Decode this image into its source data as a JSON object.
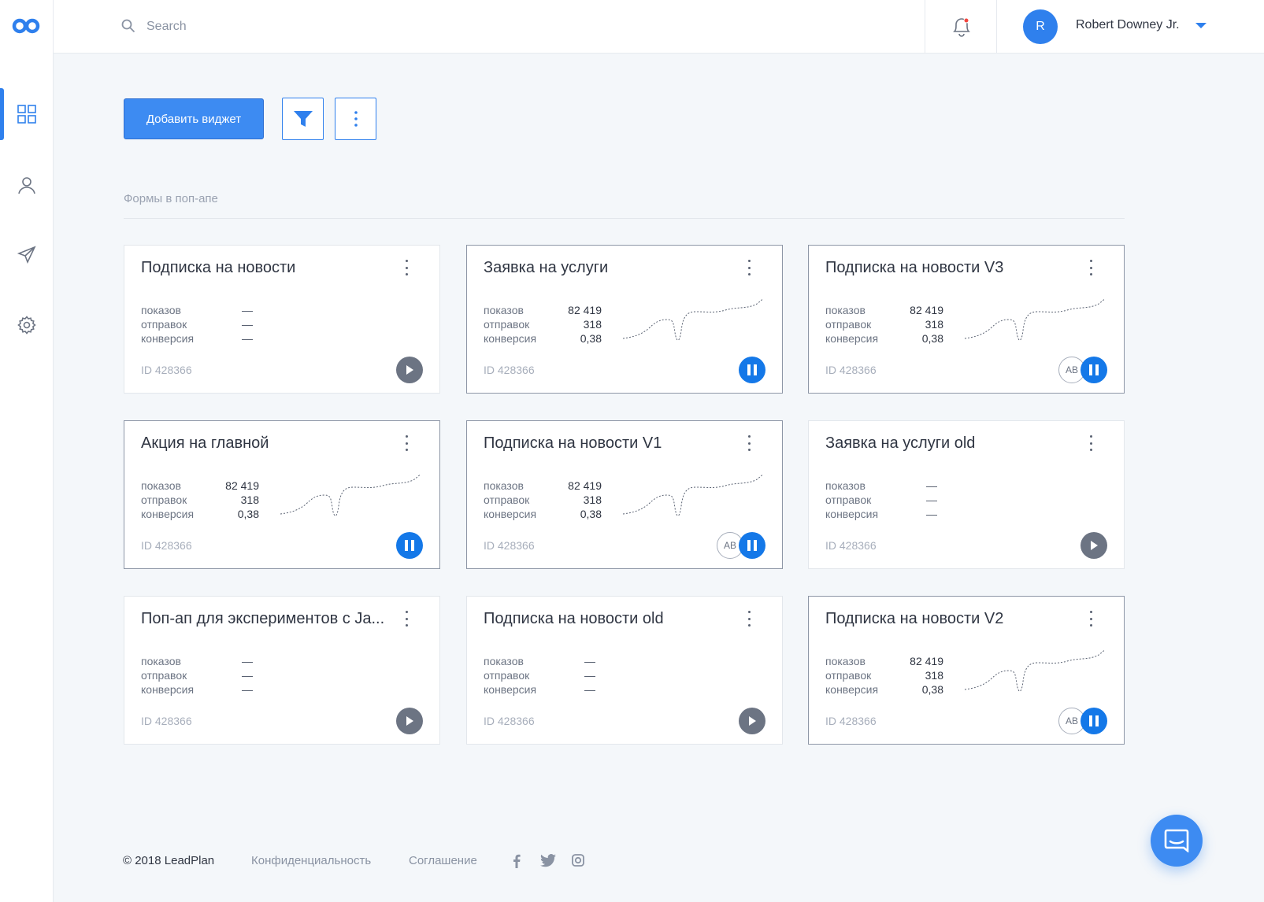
{
  "topbar": {
    "search_placeholder": "Search",
    "user_initial": "R",
    "user_name": "Robert Downey Jr."
  },
  "toolbar": {
    "add_widget_label": "Добавить виджет"
  },
  "section": {
    "title": "Формы в поп-апе"
  },
  "cards": [
    {
      "title": "Подписка на новости",
      "active": false,
      "has_data": false,
      "shows": "",
      "sends": "",
      "conv": "",
      "id": "ID 428366",
      "state": "play",
      "ab": false
    },
    {
      "title": "Заявка на услуги",
      "active": true,
      "has_data": true,
      "shows": "82 419",
      "sends": "318",
      "conv": "0,38",
      "id": "ID 428366",
      "state": "pause",
      "ab": false
    },
    {
      "title": "Подписка на новости V3",
      "active": true,
      "has_data": true,
      "shows": "82 419",
      "sends": "318",
      "conv": "0,38",
      "id": "ID 428366",
      "state": "pause",
      "ab": true
    },
    {
      "title": "Акция на главной",
      "active": true,
      "has_data": true,
      "shows": "82 419",
      "sends": "318",
      "conv": "0,38",
      "id": "ID 428366",
      "state": "pause",
      "ab": false
    },
    {
      "title": "Подписка на новости V1",
      "active": true,
      "has_data": true,
      "shows": "82 419",
      "sends": "318",
      "conv": "0,38",
      "id": "ID 428366",
      "state": "pause",
      "ab": true
    },
    {
      "title": "Заявка на услуги old",
      "active": false,
      "has_data": false,
      "shows": "",
      "sends": "",
      "conv": "",
      "id": "ID 428366",
      "state": "play",
      "ab": false
    },
    {
      "title": "Поп-ап для экспериментов с Ja...",
      "active": false,
      "has_data": false,
      "shows": "",
      "sends": "",
      "conv": "",
      "id": "ID 428366",
      "state": "play",
      "ab": false
    },
    {
      "title": "Подписка на новости old",
      "active": false,
      "has_data": false,
      "shows": "",
      "sends": "",
      "conv": "",
      "id": "ID 428366",
      "state": "play",
      "ab": false
    },
    {
      "title": "Подписка на новости V2",
      "active": true,
      "has_data": true,
      "shows": "82 419",
      "sends": "318",
      "conv": "0,38",
      "id": "ID 428366",
      "state": "pause",
      "ab": true
    }
  ],
  "labels": {
    "shows": "показов",
    "sends": "отправок",
    "conv": "конверсия",
    "ab": "AB"
  },
  "footer": {
    "copyright": "© 2018 LeadPlan",
    "privacy": "Конфиденциальность",
    "agreement": "Соглашение"
  },
  "colors": {
    "accent": "#2f80ed",
    "pause": "#1478e8",
    "play": "#6c7483"
  },
  "icons": {
    "sidebar": [
      "dashboard-icon",
      "user-icon",
      "send-icon",
      "settings-icon"
    ],
    "social": [
      "facebook-icon",
      "twitter-icon",
      "instagram-icon"
    ]
  }
}
